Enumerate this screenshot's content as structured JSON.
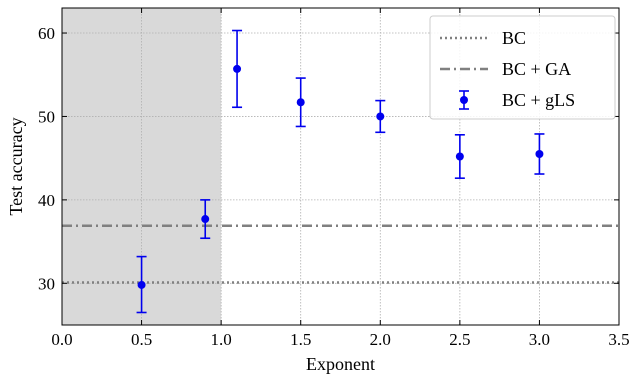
{
  "chart_data": {
    "type": "scatter",
    "xlabel": "Exponent",
    "ylabel": "Test accuracy",
    "xlim": [
      0.0,
      3.5
    ],
    "ylim": [
      25,
      63
    ],
    "x_ticks": [
      "0.0",
      "0.5",
      "1.0",
      "1.5",
      "2.0",
      "2.5",
      "3.0",
      "3.5"
    ],
    "y_ticks": [
      "30",
      "40",
      "50",
      "60"
    ],
    "grid": true,
    "legend_position": "top-right",
    "shaded_region": {
      "x_from": 0.0,
      "x_to": 1.0,
      "color": "#d9d9d9"
    },
    "series": [
      {
        "name": "BC",
        "kind": "hline",
        "style": "dotted",
        "color": "#808080",
        "y": 30.1
      },
      {
        "name": "BC + GA",
        "kind": "hline",
        "style": "dashdot",
        "color": "#808080",
        "y": 36.9
      },
      {
        "name": "BC + gLS",
        "kind": "errorbar",
        "color": "#0000ee",
        "points": [
          {
            "x": 0.5,
            "y": 29.8,
            "lo": 26.5,
            "hi": 33.2
          },
          {
            "x": 0.9,
            "y": 37.7,
            "lo": 35.4,
            "hi": 40.0
          },
          {
            "x": 1.1,
            "y": 55.7,
            "lo": 51.1,
            "hi": 60.3
          },
          {
            "x": 1.5,
            "y": 51.7,
            "lo": 48.8,
            "hi": 54.6
          },
          {
            "x": 2.0,
            "y": 50.0,
            "lo": 48.1,
            "hi": 51.9
          },
          {
            "x": 2.5,
            "y": 45.2,
            "lo": 42.6,
            "hi": 47.8
          },
          {
            "x": 3.0,
            "y": 45.5,
            "lo": 43.1,
            "hi": 47.9
          }
        ]
      }
    ]
  }
}
